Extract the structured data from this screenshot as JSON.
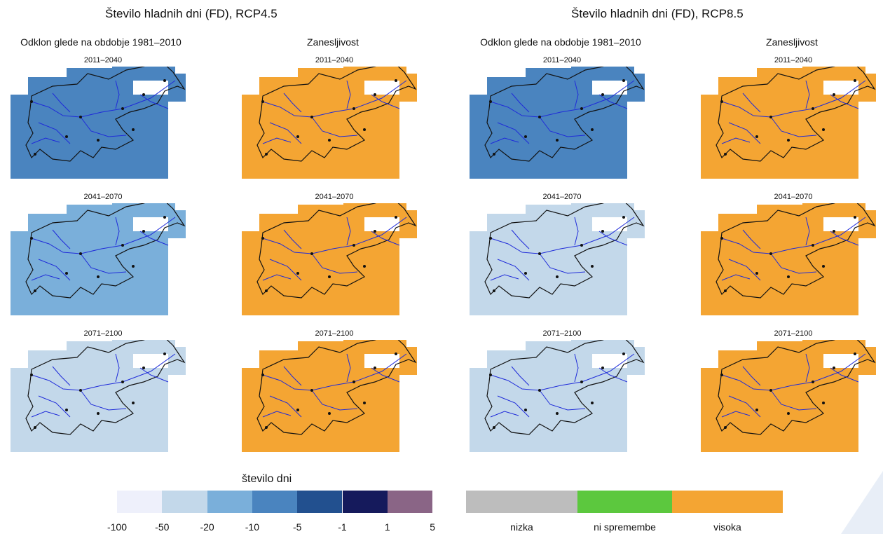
{
  "panels": [
    {
      "title": "Število hladnih dni (FD), RCP4.5",
      "deviation_header": "Odklon glede na obdobje 1981–2010",
      "reliability_header": "Zanesljivost",
      "periods": [
        "2011–2040",
        "2041–2070",
        "2071–2100"
      ],
      "deviation_fill": [
        "#4a84bf",
        "#7aafda",
        "#c3d8ea"
      ],
      "reliability_fill": "#f4a533"
    },
    {
      "title": "Število hladnih dni (FD), RCP8.5",
      "deviation_header": "Odklon glede na obdobje 1981–2010",
      "reliability_header": "Zanesljivost",
      "periods": [
        "2011–2040",
        "2041–2070",
        "2071–2100"
      ],
      "deviation_fill": [
        "#4a84bf",
        "#c3d8ea",
        "#c3d8ea"
      ],
      "reliability_fill": "#f4a533"
    }
  ],
  "legend_days": {
    "title": "število dni",
    "ticks": [
      "-100",
      "-50",
      "-20",
      "-10",
      "-5",
      "-1",
      "1",
      "5"
    ],
    "colors": [
      "#eef0fb",
      "#c3d8ea",
      "#7aafda",
      "#4a84bf",
      "#22508f",
      "#151a5c",
      "#8a6586"
    ]
  },
  "legend_reliability": {
    "labels": [
      "nizka",
      "ni spremembe",
      "visoka"
    ],
    "colors": [
      "#bdbdbd",
      "#5cc83e",
      "#f4a533"
    ]
  },
  "river_color": "#1f2bd9"
}
